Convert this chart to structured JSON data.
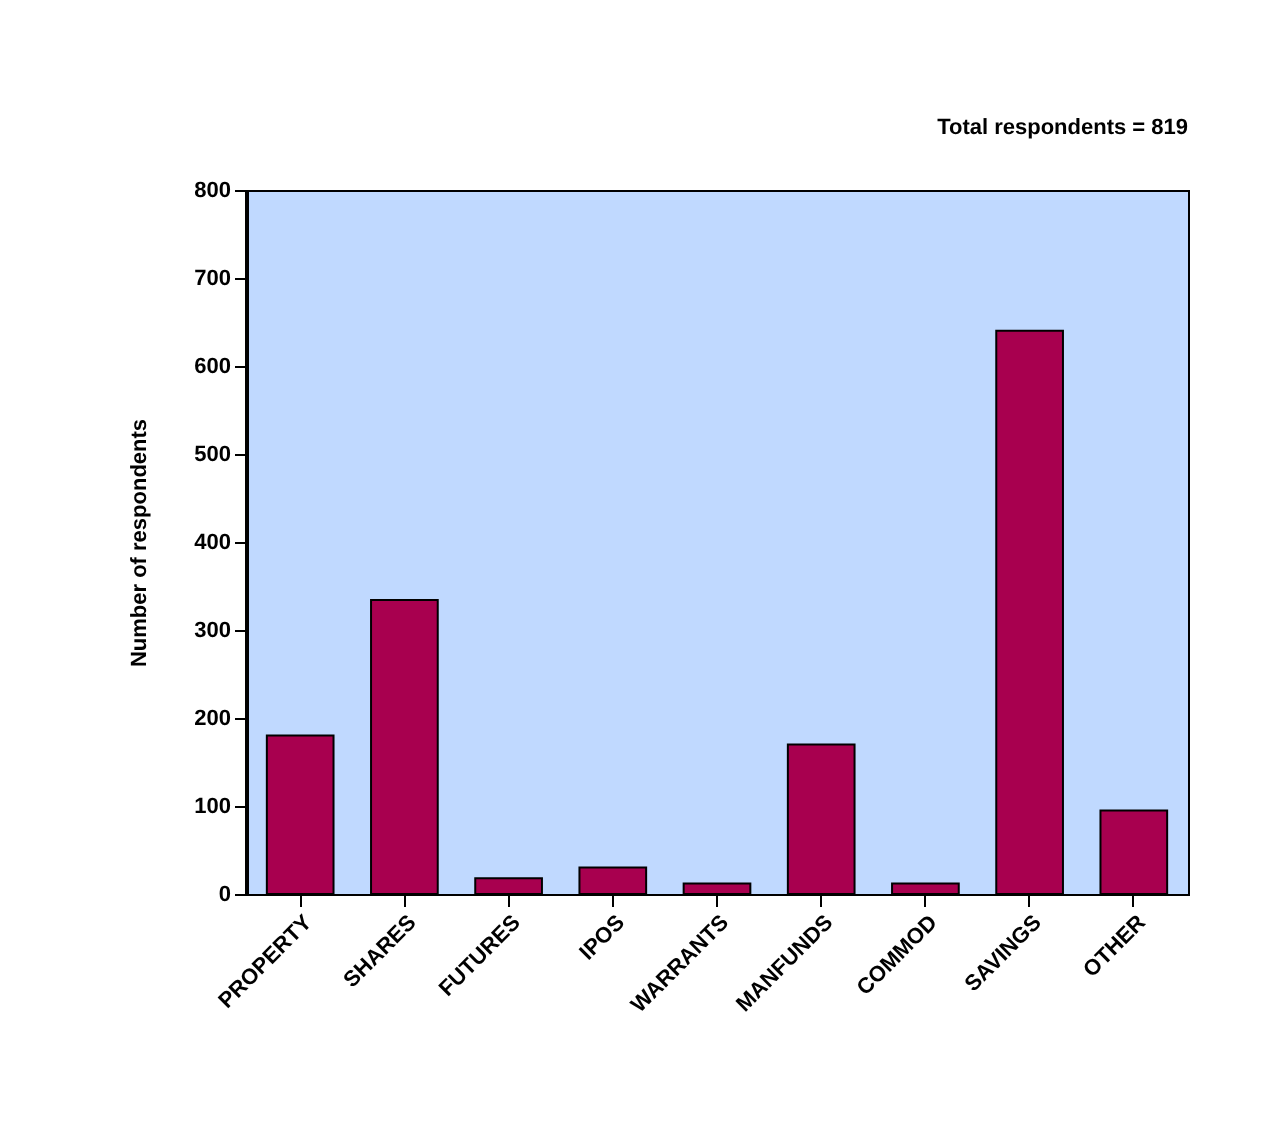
{
  "chart_data": {
    "type": "bar",
    "annotations": [
      "Total respondents = 819"
    ],
    "ylabel": "Number of respondents",
    "categories": [
      "PROPERTY",
      "SHARES",
      "FUTURES",
      "IPOS",
      "WARRANTS",
      "MANFUNDS",
      "COMMOD",
      "SAVINGS",
      "OTHER"
    ],
    "values": [
      180,
      334,
      18,
      30,
      12,
      170,
      12,
      640,
      95
    ],
    "color": "#a8004f",
    "ylim": [
      0,
      800
    ],
    "yticks": [
      0,
      100,
      200,
      300,
      400,
      500,
      600,
      700,
      800
    ],
    "grid": false
  }
}
